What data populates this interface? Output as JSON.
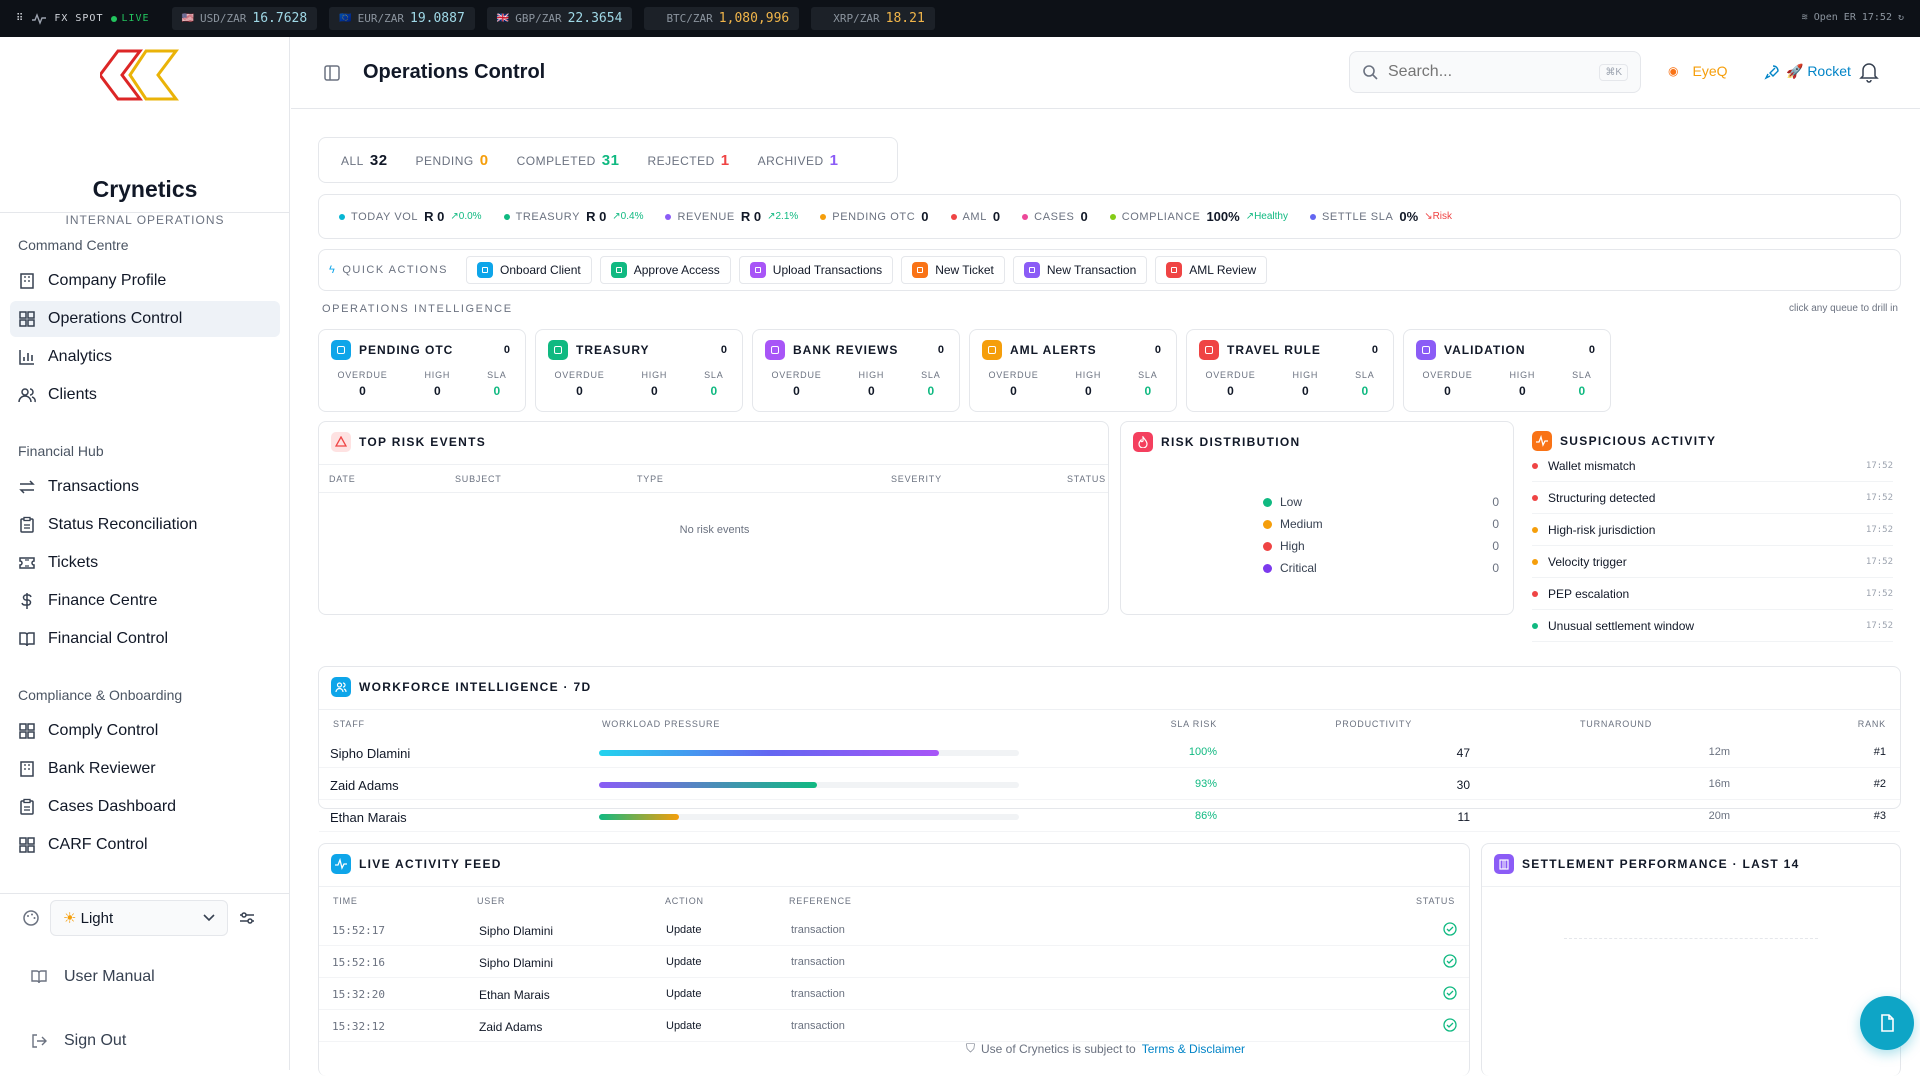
{
  "ticker": {
    "brand": "FX SPOT",
    "live": "LIVE",
    "pairs": [
      {
        "flag": "🇺🇸",
        "pair": "USD/ZAR",
        "value": "16.7628"
      },
      {
        "flag": "🇪🇺",
        "pair": "EUR/ZAR",
        "value": "19.0887"
      },
      {
        "flag": "🇬🇧",
        "pair": "GBP/ZAR",
        "value": "22.3654"
      },
      {
        "flag": "",
        "pair": "BTC/ZAR",
        "value": "1,080,996"
      },
      {
        "flag": "",
        "pair": "XRP/ZAR",
        "value": "18.21"
      }
    ],
    "market_status": "Open ER",
    "clock": "17:52"
  },
  "sidebar": {
    "org_name": "Crynetics",
    "org_sub": "INTERNAL OPERATIONS",
    "groups": [
      {
        "title": "Command Centre",
        "items": [
          {
            "label": "Company Profile",
            "icon": "building-icon"
          },
          {
            "label": "Operations Control",
            "icon": "grid-icon",
            "active": true
          },
          {
            "label": "Analytics",
            "icon": "bar-chart-icon"
          },
          {
            "label": "Clients",
            "icon": "users-icon"
          }
        ]
      },
      {
        "title": "Financial Hub",
        "items": [
          {
            "label": "Transactions",
            "icon": "arrows-icon"
          },
          {
            "label": "Status Reconciliation",
            "icon": "clipboard-icon"
          },
          {
            "label": "Tickets",
            "icon": "ticket-icon"
          },
          {
            "label": "Finance Centre",
            "icon": "dollar-icon"
          },
          {
            "label": "Financial Control",
            "icon": "book-icon"
          }
        ]
      },
      {
        "title": "Compliance & Onboarding",
        "items": [
          {
            "label": "Comply Control",
            "icon": "grid-icon"
          },
          {
            "label": "Bank Reviewer",
            "icon": "building-icon"
          },
          {
            "label": "Cases Dashboard",
            "icon": "clipboard-icon"
          },
          {
            "label": "CARF Control",
            "icon": "grid-icon"
          }
        ]
      }
    ],
    "theme_value": "Light",
    "user_manual": "User Manual",
    "sign_out": "Sign Out"
  },
  "header": {
    "title": "Operations Control",
    "search_placeholder": "Search...",
    "search_kbd": "⌘K",
    "eyeq": "EyeQ",
    "rocket": "🚀 Rocket"
  },
  "status_tabs": [
    {
      "label": "ALL",
      "count": "32",
      "color": "#111827"
    },
    {
      "label": "PENDING",
      "count": "0",
      "color": "#f59e0b"
    },
    {
      "label": "COMPLETED",
      "count": "31",
      "color": "#10b981"
    },
    {
      "label": "REJECTED",
      "count": "1",
      "color": "#ef4444"
    },
    {
      "label": "ARCHIVED",
      "count": "1",
      "color": "#8b5cf6"
    }
  ],
  "kpis": [
    {
      "label": "TODAY VOL",
      "value": "R 0",
      "delta": "↗0.0%",
      "dot": "#06b6d4",
      "delta_color": "#10b981"
    },
    {
      "label": "TREASURY",
      "value": "R 0",
      "delta": "↗0.4%",
      "dot": "#10b981",
      "delta_color": "#10b981"
    },
    {
      "label": "REVENUE",
      "value": "R 0",
      "delta": "↗2.1%",
      "dot": "#8b5cf6",
      "delta_color": "#10b981"
    },
    {
      "label": "PENDING OTC",
      "value": "0",
      "delta": "",
      "dot": "#f59e0b",
      "delta_color": ""
    },
    {
      "label": "AML",
      "value": "0",
      "delta": "",
      "dot": "#ef4444",
      "delta_color": ""
    },
    {
      "label": "CASES",
      "value": "0",
      "delta": "",
      "dot": "#ec4899",
      "delta_color": ""
    },
    {
      "label": "COMPLIANCE",
      "value": "100%",
      "delta": "↗Healthy",
      "dot": "#84cc16",
      "delta_color": "#10b981"
    },
    {
      "label": "SETTLE SLA",
      "value": "0%",
      "delta": "↘Risk",
      "dot": "#6366f1",
      "delta_color": "#ef4444"
    }
  ],
  "quick_actions": {
    "label": "QUICK ACTIONS",
    "items": [
      {
        "label": "Onboard Client",
        "color": "#0ea5e9"
      },
      {
        "label": "Approve Access",
        "color": "#10b981"
      },
      {
        "label": "Upload Transactions",
        "color": "#a855f7"
      },
      {
        "label": "New Ticket",
        "color": "#f97316"
      },
      {
        "label": "New Transaction",
        "color": "#8b5cf6"
      },
      {
        "label": "AML Review",
        "color": "#ef4444"
      }
    ]
  },
  "ops_intel": {
    "label": "OPERATIONS INTELLIGENCE",
    "hint": "click any queue to drill in",
    "queues": [
      {
        "title": "PENDING OTC",
        "count": "0",
        "color": "#0ea5e9",
        "overdue": "0",
        "high": "0",
        "sla": "0"
      },
      {
        "title": "TREASURY",
        "count": "0",
        "color": "#10b981",
        "overdue": "0",
        "high": "0",
        "sla": "0"
      },
      {
        "title": "BANK REVIEWS",
        "count": "0",
        "color": "#a855f7",
        "overdue": "0",
        "high": "0",
        "sla": "0"
      },
      {
        "title": "AML ALERTS",
        "count": "0",
        "color": "#f59e0b",
        "overdue": "0",
        "high": "0",
        "sla": "0"
      },
      {
        "title": "TRAVEL RULE",
        "count": "0",
        "color": "#ef4444",
        "overdue": "0",
        "high": "0",
        "sla": "0"
      },
      {
        "title": "VALIDATION",
        "count": "0",
        "color": "#8b5cf6",
        "overdue": "0",
        "high": "0",
        "sla": "0"
      }
    ],
    "stat_labels": {
      "overdue": "OVERDUE",
      "high": "HIGH",
      "sla": "SLA"
    }
  },
  "risk_events": {
    "title": "TOP RISK EVENTS",
    "columns": [
      "DATE",
      "SUBJECT",
      "TYPE",
      "SEVERITY",
      "STATUS"
    ],
    "empty": "No risk events"
  },
  "risk_distribution": {
    "title": "RISK DISTRIBUTION",
    "items": [
      {
        "label": "Low",
        "count": "0",
        "color": "#10b981"
      },
      {
        "label": "Medium",
        "count": "0",
        "color": "#f59e0b"
      },
      {
        "label": "High",
        "count": "0",
        "color": "#ef4444"
      },
      {
        "label": "Critical",
        "count": "0",
        "color": "#7c3aed"
      }
    ]
  },
  "suspicious": {
    "title": "SUSPICIOUS ACTIVITY",
    "items": [
      {
        "label": "Wallet mismatch",
        "time": "17:52",
        "color": "#ef4444"
      },
      {
        "label": "Structuring detected",
        "time": "17:52",
        "color": "#ef4444"
      },
      {
        "label": "High-risk jurisdiction",
        "time": "17:52",
        "color": "#f59e0b"
      },
      {
        "label": "Velocity trigger",
        "time": "17:52",
        "color": "#f59e0b"
      },
      {
        "label": "PEP escalation",
        "time": "17:52",
        "color": "#ef4444"
      },
      {
        "label": "Unusual settlement window",
        "time": "17:52",
        "color": "#10b981"
      }
    ]
  },
  "workforce": {
    "title": "WORKFORCE INTELLIGENCE · 7D",
    "columns": [
      "STAFF",
      "WORKLOAD PRESSURE",
      "SLA RISK",
      "PRODUCTIVITY",
      "TURNAROUND",
      "RANK"
    ],
    "rows": [
      {
        "name": "Sipho Dlamini",
        "pressure": 0.81,
        "grad": "linear-gradient(90deg,#22d3ee,#6366f1,#a855f7)",
        "sla": "100%",
        "productivity": "47",
        "turnaround": "12m",
        "rank": "#1"
      },
      {
        "name": "Zaid Adams",
        "pressure": 0.52,
        "grad": "linear-gradient(90deg,#8b5cf6,#10b981)",
        "sla": "93%",
        "productivity": "30",
        "turnaround": "16m",
        "rank": "#2"
      },
      {
        "name": "Ethan Marais",
        "pressure": 0.19,
        "grad": "linear-gradient(90deg,#10b981,#f59e0b)",
        "sla": "86%",
        "productivity": "11",
        "turnaround": "20m",
        "rank": "#3"
      }
    ]
  },
  "feed": {
    "title": "LIVE ACTIVITY FEED",
    "columns": [
      "TIME",
      "USER",
      "ACTION",
      "REFERENCE",
      "STATUS"
    ],
    "rows": [
      {
        "time": "15:52:17",
        "user": "Sipho Dlamini",
        "action": "Update",
        "ref": "transaction"
      },
      {
        "time": "15:52:16",
        "user": "Sipho Dlamini",
        "action": "Update",
        "ref": "transaction"
      },
      {
        "time": "15:32:20",
        "user": "Ethan Marais",
        "action": "Update",
        "ref": "transaction"
      },
      {
        "time": "15:32:12",
        "user": "Zaid Adams",
        "action": "Update",
        "ref": "transaction"
      }
    ]
  },
  "settlement": {
    "title": "SETTLEMENT PERFORMANCE · LAST 14"
  },
  "footer": {
    "text": "Use of Crynetics is subject to",
    "link": "Terms & Disclaimer"
  }
}
